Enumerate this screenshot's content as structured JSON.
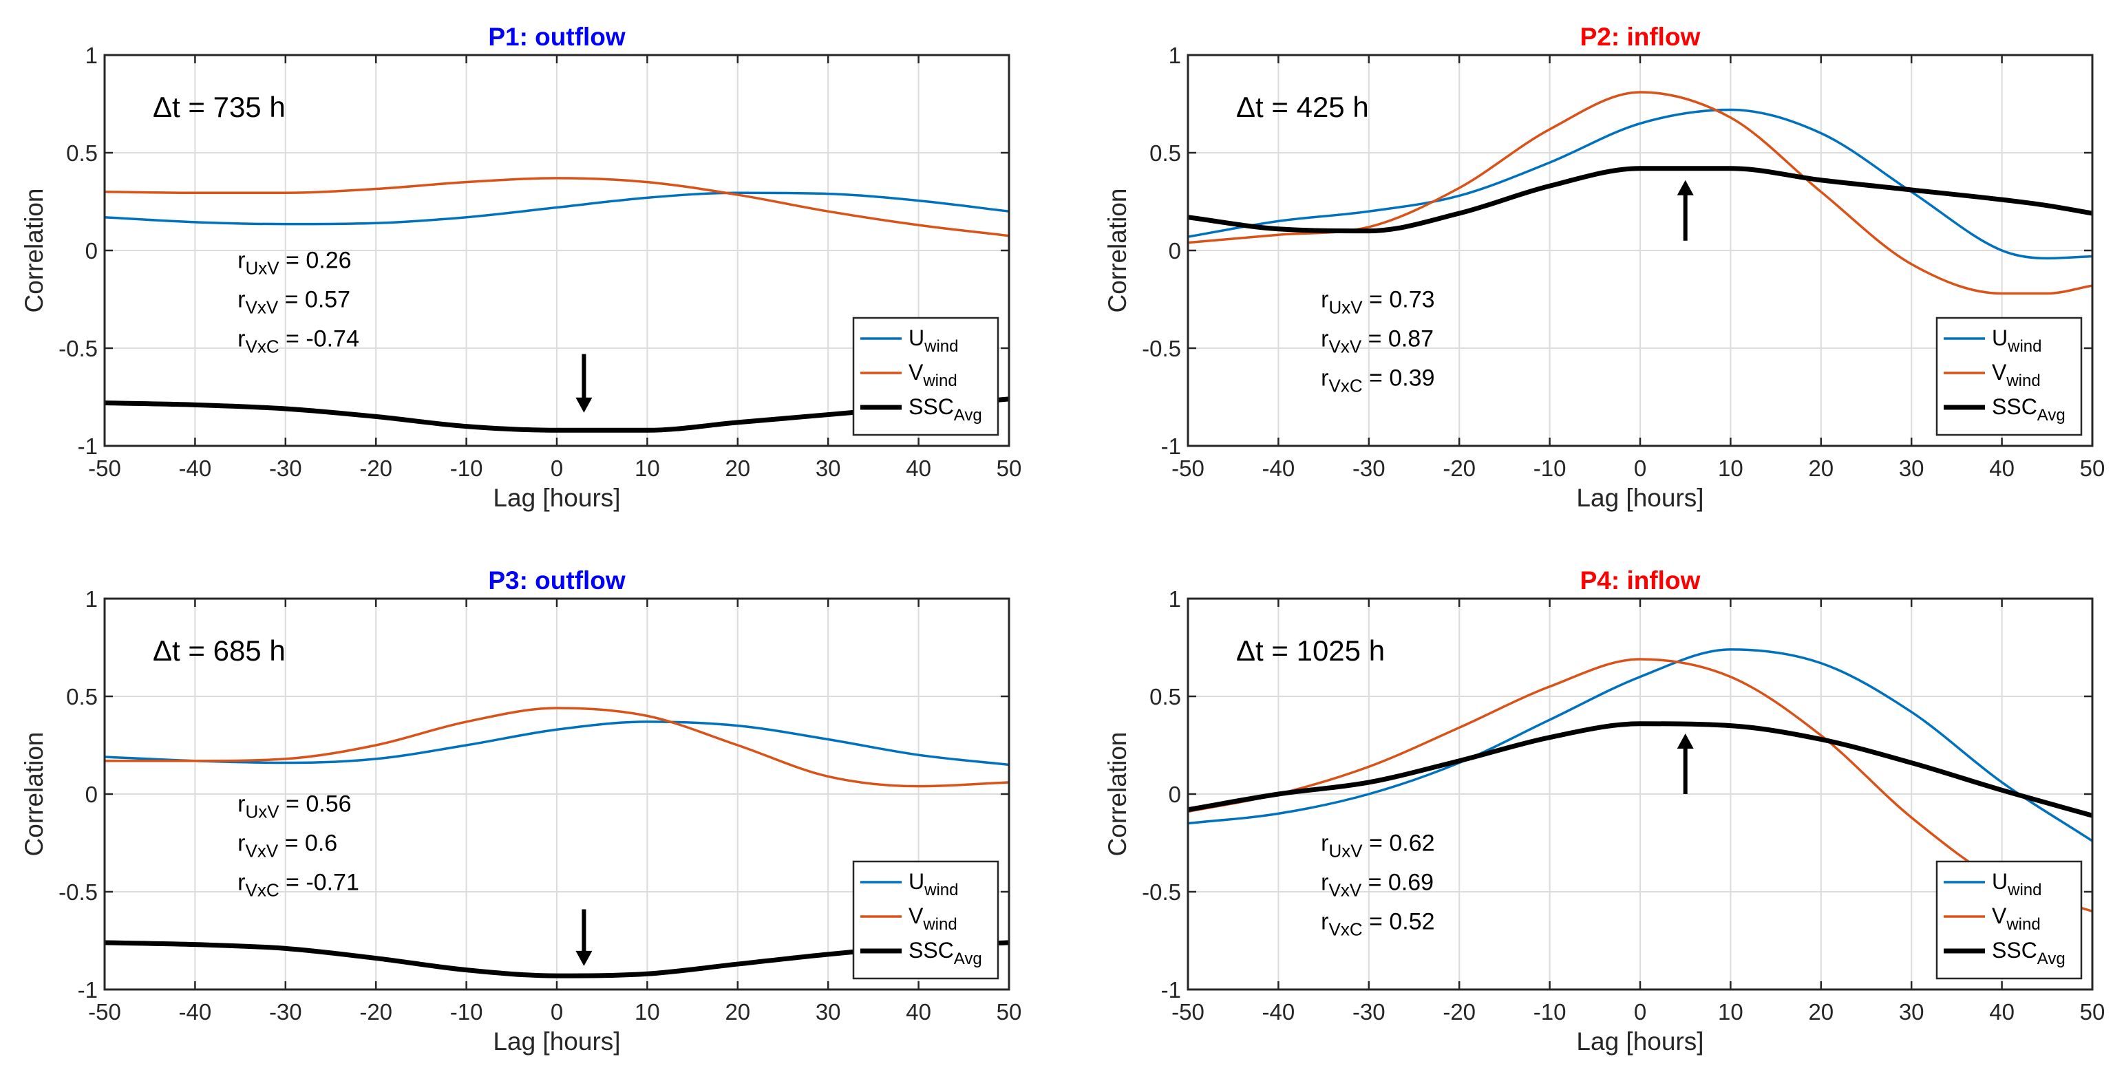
{
  "chart_data": [
    {
      "type": "line",
      "title": "P1: outflow",
      "title_color": "#0000ff",
      "xlabel": "Lag [hours]",
      "ylabel": "Correlation",
      "xlim": [
        -50,
        50
      ],
      "ylim": [
        -1,
        1
      ],
      "xticks": [
        "-50",
        "-40",
        "-30",
        "-20",
        "-10",
        "0",
        "10",
        "20",
        "30",
        "40",
        "50"
      ],
      "yticks": [
        "-1",
        "-0.5",
        "0",
        "0.5",
        "1"
      ],
      "grid": true,
      "legend_position": "bottom-right",
      "delta_label": "Δt = 735 h",
      "stats": [
        {
          "main": "r",
          "sub": "UxV",
          "value": " = 0.26"
        },
        {
          "main": "r",
          "sub": "VxV",
          "value": " = 0.57"
        },
        {
          "main": "r",
          "sub": "VxC",
          "value": " = -0.74"
        }
      ],
      "arrow": {
        "x": 3,
        "y_tail": -0.53,
        "y_head": -0.83
      },
      "x": [
        -50,
        -40,
        -30,
        -20,
        -10,
        0,
        10,
        20,
        30,
        40,
        50
      ],
      "series": [
        {
          "name": "U",
          "sub": "wind",
          "color": "#0072bd",
          "width": 3.5,
          "values": [
            0.17,
            0.145,
            0.135,
            0.14,
            0.17,
            0.22,
            0.27,
            0.295,
            0.29,
            0.255,
            0.2
          ]
        },
        {
          "name": "V",
          "sub": "wind",
          "color": "#d95319",
          "width": 3.5,
          "values": [
            0.3,
            0.295,
            0.295,
            0.315,
            0.35,
            0.37,
            0.35,
            0.285,
            0.2,
            0.13,
            0.075
          ]
        },
        {
          "name": "SSC",
          "sub": "Avg",
          "color": "#000000",
          "width": 7,
          "values": [
            -0.78,
            -0.79,
            -0.81,
            -0.85,
            -0.9,
            -0.92,
            -0.92,
            -0.88,
            -0.84,
            -0.8,
            -0.76
          ]
        }
      ]
    },
    {
      "type": "line",
      "title": "P2: inflow",
      "title_color": "#ff0000",
      "xlabel": "Lag [hours]",
      "ylabel": "Correlation",
      "xlim": [
        -50,
        50
      ],
      "ylim": [
        -1,
        1
      ],
      "xticks": [
        "-50",
        "-40",
        "-30",
        "-20",
        "-10",
        "0",
        "10",
        "20",
        "30",
        "40",
        "50"
      ],
      "yticks": [
        "-1",
        "-0.5",
        "0",
        "0.5",
        "1"
      ],
      "grid": true,
      "legend_position": "bottom-right",
      "delta_label": "Δt = 425 h",
      "stats": [
        {
          "main": "r",
          "sub": "UxV",
          "value": " = 0.73"
        },
        {
          "main": "r",
          "sub": "VxV",
          "value": " = 0.87"
        },
        {
          "main": "r",
          "sub": "VxC",
          "value": " = 0.39"
        }
      ],
      "arrow": {
        "x": 5,
        "y_tail": 0.05,
        "y_head": 0.36
      },
      "x": [
        -50,
        -40,
        -30,
        -20,
        -10,
        0,
        10,
        20,
        30,
        40,
        45,
        50
      ],
      "series": [
        {
          "name": "U",
          "sub": "wind",
          "color": "#0072bd",
          "width": 3.5,
          "values": [
            0.07,
            0.15,
            0.2,
            0.28,
            0.45,
            0.65,
            0.72,
            0.6,
            0.3,
            0.0,
            -0.04,
            -0.03
          ]
        },
        {
          "name": "V",
          "sub": "wind",
          "color": "#d95319",
          "width": 3.5,
          "values": [
            0.04,
            0.08,
            0.12,
            0.32,
            0.62,
            0.81,
            0.68,
            0.3,
            -0.07,
            -0.22,
            -0.22,
            -0.18
          ]
        },
        {
          "name": "SSC",
          "sub": "Avg",
          "color": "#000000",
          "width": 7,
          "values": [
            0.17,
            0.11,
            0.1,
            0.19,
            0.33,
            0.42,
            0.42,
            0.36,
            0.31,
            0.26,
            0.23,
            0.19
          ]
        }
      ]
    },
    {
      "type": "line",
      "title": "P3: outflow",
      "title_color": "#0000ff",
      "xlabel": "Lag [hours]",
      "ylabel": "Correlation",
      "xlim": [
        -50,
        50
      ],
      "ylim": [
        -1,
        1
      ],
      "xticks": [
        "-50",
        "-40",
        "-30",
        "-20",
        "-10",
        "0",
        "10",
        "20",
        "30",
        "40",
        "50"
      ],
      "yticks": [
        "-1",
        "-0.5",
        "0",
        "0.5",
        "1"
      ],
      "grid": true,
      "legend_position": "bottom-right",
      "delta_label": "Δt = 685 h",
      "stats": [
        {
          "main": "r",
          "sub": "UxV",
          "value": " = 0.56"
        },
        {
          "main": "r",
          "sub": "VxV",
          "value": " = 0.6"
        },
        {
          "main": "r",
          "sub": "VxC",
          "value": " = -0.71"
        }
      ],
      "arrow": {
        "x": 3,
        "y_tail": -0.59,
        "y_head": -0.88
      },
      "x": [
        -50,
        -40,
        -30,
        -20,
        -10,
        0,
        10,
        20,
        30,
        40,
        50
      ],
      "series": [
        {
          "name": "U",
          "sub": "wind",
          "color": "#0072bd",
          "width": 3.5,
          "values": [
            0.19,
            0.17,
            0.16,
            0.18,
            0.25,
            0.33,
            0.37,
            0.35,
            0.28,
            0.2,
            0.15
          ]
        },
        {
          "name": "V",
          "sub": "wind",
          "color": "#d95319",
          "width": 3.5,
          "values": [
            0.17,
            0.17,
            0.18,
            0.25,
            0.37,
            0.44,
            0.4,
            0.25,
            0.09,
            0.04,
            0.06
          ]
        },
        {
          "name": "SSC",
          "sub": "Avg",
          "color": "#000000",
          "width": 7,
          "values": [
            -0.76,
            -0.77,
            -0.79,
            -0.84,
            -0.9,
            -0.93,
            -0.92,
            -0.87,
            -0.82,
            -0.78,
            -0.76
          ]
        }
      ]
    },
    {
      "type": "line",
      "title": "P4: inflow",
      "title_color": "#ff0000",
      "xlabel": "Lag [hours]",
      "ylabel": "Correlation",
      "xlim": [
        -50,
        50
      ],
      "ylim": [
        -1,
        1
      ],
      "xticks": [
        "-50",
        "-40",
        "-30",
        "-20",
        "-10",
        "0",
        "10",
        "20",
        "30",
        "40",
        "50"
      ],
      "yticks": [
        "-1",
        "-0.5",
        "0",
        "0.5",
        "1"
      ],
      "grid": true,
      "legend_position": "bottom-right",
      "delta_label": "Δt = 1025 h",
      "stats": [
        {
          "main": "r",
          "sub": "UxV",
          "value": " = 0.62"
        },
        {
          "main": "r",
          "sub": "VxV",
          "value": " = 0.69"
        },
        {
          "main": "r",
          "sub": "VxC",
          "value": " = 0.52"
        }
      ],
      "arrow": {
        "x": 5,
        "y_tail": 0.0,
        "y_head": 0.31
      },
      "x": [
        -50,
        -40,
        -30,
        -20,
        -10,
        0,
        10,
        20,
        30,
        40,
        50
      ],
      "series": [
        {
          "name": "U",
          "sub": "wind",
          "color": "#0072bd",
          "width": 3.5,
          "values": [
            -0.15,
            -0.1,
            0.0,
            0.16,
            0.38,
            0.6,
            0.74,
            0.67,
            0.42,
            0.06,
            -0.24
          ]
        },
        {
          "name": "V",
          "sub": "wind",
          "color": "#d95319",
          "width": 3.5,
          "values": [
            -0.09,
            0.0,
            0.14,
            0.34,
            0.55,
            0.69,
            0.6,
            0.3,
            -0.12,
            -0.45,
            -0.6
          ]
        },
        {
          "name": "SSC",
          "sub": "Avg",
          "color": "#000000",
          "width": 7,
          "values": [
            -0.08,
            0.0,
            0.06,
            0.17,
            0.29,
            0.36,
            0.35,
            0.28,
            0.16,
            0.02,
            -0.11
          ]
        }
      ]
    }
  ]
}
